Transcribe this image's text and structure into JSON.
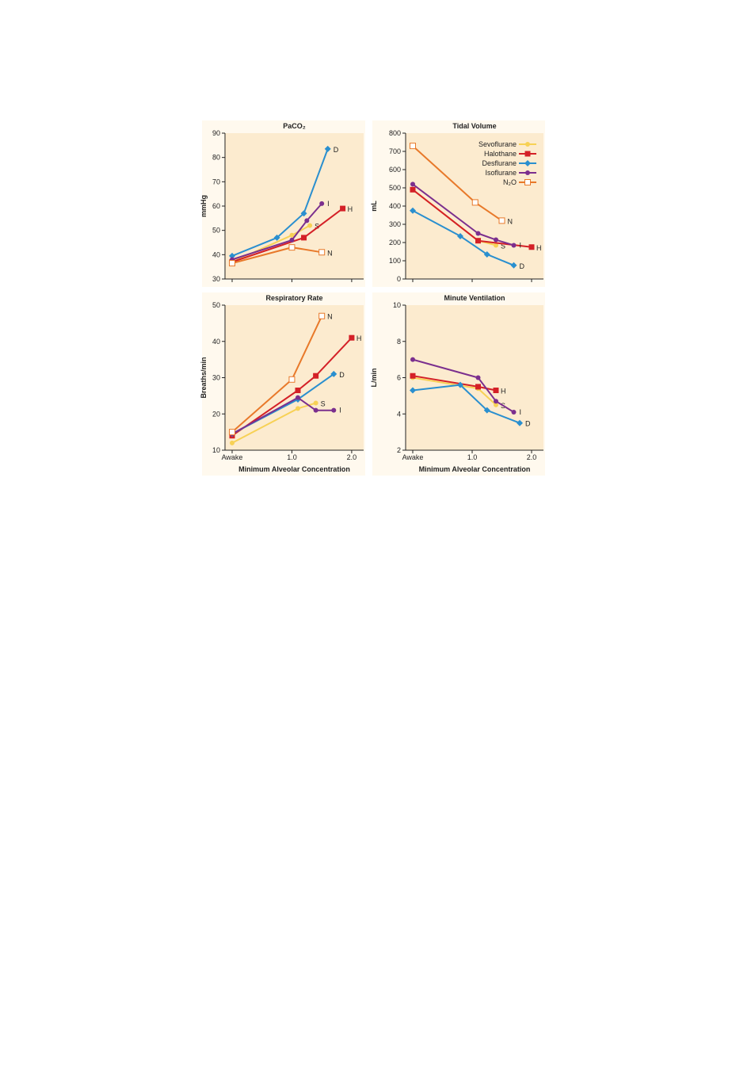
{
  "colors": {
    "Sevoflurane": "#f7d155",
    "Halothane": "#d42027",
    "Desflurane": "#2a8fcf",
    "Isoflurane": "#7b2f8e",
    "N2O": "#e8792a",
    "background": "#fcebcf"
  },
  "legend": [
    {
      "key": "Sevoflurane",
      "label": "Sevoflurane",
      "marker": "circle"
    },
    {
      "key": "Halothane",
      "label": "Halothane",
      "marker": "square"
    },
    {
      "key": "Desflurane",
      "label": "Desflurane",
      "marker": "diamond"
    },
    {
      "key": "Isoflurane",
      "label": "Isoflurane",
      "marker": "circle"
    },
    {
      "key": "N2O",
      "label": "N₂O",
      "marker": "open-square"
    }
  ],
  "chart_data": [
    {
      "type": "line",
      "title": "PaCO₂",
      "ylabel": "mmHg",
      "xlabel": "",
      "ylim": [
        30,
        90
      ],
      "yticks": [
        30,
        40,
        50,
        60,
        70,
        80,
        90
      ],
      "xlim": [
        0,
        2.2
      ],
      "xticks": [
        {
          "v": 0,
          "label": ""
        },
        {
          "v": 1,
          "label": ""
        },
        {
          "v": 2,
          "label": ""
        }
      ],
      "series": [
        {
          "key": "Sevoflurane",
          "end_label": "S",
          "points": [
            [
              0,
              37
            ],
            [
              1.0,
              48
            ],
            [
              1.3,
              52
            ]
          ]
        },
        {
          "key": "Halothane",
          "end_label": "H",
          "points": [
            [
              0,
              37
            ],
            [
              1.2,
              47
            ],
            [
              1.85,
              59
            ]
          ]
        },
        {
          "key": "Desflurane",
          "end_label": "D",
          "points": [
            [
              0,
              39.5
            ],
            [
              0.75,
              47
            ],
            [
              1.2,
              57
            ],
            [
              1.6,
              83.5
            ]
          ]
        },
        {
          "key": "Isoflurane",
          "end_label": "I",
          "points": [
            [
              0,
              38
            ],
            [
              1.0,
              46
            ],
            [
              1.25,
              54
            ],
            [
              1.5,
              61
            ]
          ]
        },
        {
          "key": "N2O",
          "end_label": "N",
          "points": [
            [
              0,
              36.5
            ],
            [
              1.0,
              43
            ],
            [
              1.5,
              41
            ]
          ]
        }
      ]
    },
    {
      "type": "line",
      "title": "Tidal Volume",
      "ylabel": "mL",
      "xlabel": "",
      "ylim": [
        0,
        800
      ],
      "yticks": [
        0,
        100,
        200,
        300,
        400,
        500,
        600,
        700,
        800
      ],
      "xlim": [
        0,
        2.2
      ],
      "xticks": [
        {
          "v": 0,
          "label": ""
        },
        {
          "v": 1,
          "label": ""
        },
        {
          "v": 2,
          "label": ""
        }
      ],
      "legend_position": "top-right",
      "series": [
        {
          "key": "Sevoflurane",
          "end_label": "S",
          "points": [
            [
              0,
              490
            ],
            [
              1.1,
              210
            ],
            [
              1.4,
              185
            ]
          ]
        },
        {
          "key": "Halothane",
          "end_label": "H",
          "points": [
            [
              0,
              490
            ],
            [
              1.1,
              210
            ],
            [
              2.0,
              175
            ]
          ]
        },
        {
          "key": "Desflurane",
          "end_label": "D",
          "points": [
            [
              0,
              375
            ],
            [
              0.8,
              235
            ],
            [
              1.25,
              135
            ],
            [
              1.7,
              75
            ]
          ]
        },
        {
          "key": "Isoflurane",
          "end_label": "I",
          "points": [
            [
              0,
              520
            ],
            [
              1.1,
              250
            ],
            [
              1.4,
              215
            ],
            [
              1.7,
              185
            ]
          ]
        },
        {
          "key": "N2O",
          "end_label": "N",
          "points": [
            [
              0,
              730
            ],
            [
              1.05,
              420
            ],
            [
              1.5,
              320
            ]
          ]
        }
      ]
    },
    {
      "type": "line",
      "title": "Respiratory Rate",
      "ylabel": "Breaths/min",
      "xlabel": "Minimum Alveolar Concentration",
      "ylim": [
        10,
        50
      ],
      "yticks": [
        10,
        20,
        30,
        40,
        50
      ],
      "xlim": [
        0,
        2.2
      ],
      "xticks": [
        {
          "v": 0,
          "label": "Awake"
        },
        {
          "v": 1,
          "label": "1.0"
        },
        {
          "v": 2,
          "label": "2.0"
        }
      ],
      "series": [
        {
          "key": "Sevoflurane",
          "end_label": "S",
          "points": [
            [
              0,
              12
            ],
            [
              1.1,
              21.5
            ],
            [
              1.4,
              23
            ]
          ]
        },
        {
          "key": "Halothane",
          "end_label": "H",
          "points": [
            [
              0,
              14
            ],
            [
              1.1,
              26.5
            ],
            [
              1.4,
              30.5
            ],
            [
              2.0,
              41
            ]
          ]
        },
        {
          "key": "Desflurane",
          "end_label": "D",
          "points": [
            [
              0,
              14.5
            ],
            [
              1.1,
              24
            ],
            [
              1.7,
              31
            ]
          ]
        },
        {
          "key": "Isoflurane",
          "end_label": "I",
          "points": [
            [
              0,
              14.5
            ],
            [
              1.1,
              24.5
            ],
            [
              1.4,
              21
            ],
            [
              1.7,
              21
            ]
          ]
        },
        {
          "key": "N2O",
          "end_label": "N",
          "points": [
            [
              0,
              15
            ],
            [
              1.0,
              29.5
            ],
            [
              1.5,
              47
            ]
          ]
        }
      ]
    },
    {
      "type": "line",
      "title": "Minute Ventilation",
      "ylabel": "L/min",
      "xlabel": "Minimum Alveolar Concentration",
      "ylim": [
        2,
        10
      ],
      "yticks": [
        2,
        4,
        6,
        8,
        10
      ],
      "xlim": [
        0,
        2.2
      ],
      "xticks": [
        {
          "v": 0,
          "label": "Awake"
        },
        {
          "v": 1,
          "label": "1.0"
        },
        {
          "v": 2,
          "label": "2.0"
        }
      ],
      "series": [
        {
          "key": "Sevoflurane",
          "end_label": "S",
          "points": [
            [
              0,
              6.0
            ],
            [
              1.1,
              5.4
            ],
            [
              1.4,
              4.5
            ]
          ]
        },
        {
          "key": "Halothane",
          "end_label": "H",
          "points": [
            [
              0,
              6.1
            ],
            [
              1.1,
              5.5
            ],
            [
              1.4,
              5.3
            ]
          ]
        },
        {
          "key": "Desflurane",
          "end_label": "D",
          "points": [
            [
              0,
              5.3
            ],
            [
              0.8,
              5.6
            ],
            [
              1.25,
              4.2
            ],
            [
              1.8,
              3.5
            ]
          ]
        },
        {
          "key": "Isoflurane",
          "end_label": "I",
          "points": [
            [
              0,
              7.0
            ],
            [
              1.1,
              6.0
            ],
            [
              1.4,
              4.7
            ],
            [
              1.7,
              4.1
            ]
          ]
        }
      ]
    }
  ]
}
